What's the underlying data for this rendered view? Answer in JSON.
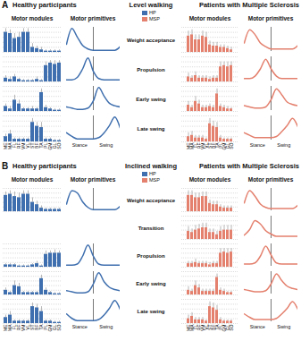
{
  "chart_data": {
    "type": "synergy_grid",
    "groups": [
      {
        "name": "HP",
        "title": "Healthy participants",
        "color": "#3f6fae"
      },
      {
        "name": "MSP",
        "title": "Patients with Multiple Sclerosis",
        "color": "#e4806e"
      }
    ],
    "column_titles": [
      "Motor modules",
      "Motor primitives"
    ],
    "muscles": [
      "ME",
      "MA",
      "FL",
      "RF",
      "VM",
      "VL",
      "ST",
      "BF",
      "TA",
      "PL",
      "GM",
      "GL",
      "SO"
    ],
    "module_ylim": [
      0,
      1
    ],
    "module_yticks": [
      0,
      0.2,
      0.4,
      0.6,
      0.8,
      1
    ],
    "grid": true,
    "tick_labels": "x",
    "primitive_x": [
      0,
      10,
      20,
      30,
      40,
      50,
      60,
      70,
      80,
      90,
      100
    ],
    "primitive_xlim": [
      0,
      100
    ],
    "primitive_ylim": [
      0,
      1
    ],
    "phase_boundary": 50,
    "phases": [
      "Stance",
      "Swing"
    ],
    "panels": [
      {
        "label": "A",
        "title": "Level walking",
        "synergies": [
          {
            "name": "Weight acceptance",
            "HP": {
              "module": [
                0.8,
                0.75,
                0.55,
                0.6,
                0.8,
                0.8,
                0.2,
                0.15,
                0.1,
                0.05,
                0.05,
                0.05,
                0.05
              ],
              "errors": [
                0.15,
                0.15,
                0.2,
                0.2,
                0.15,
                0.15,
                0.15,
                0.1,
                0.1,
                0.05,
                0.05,
                0.05,
                0.05
              ],
              "primitive": [
                0.3,
                0.95,
                0.6,
                0.25,
                0.1,
                0.05,
                0.05,
                0.05,
                0.05,
                0.05,
                0.2
              ]
            },
            "MSP": {
              "module": [
                0.65,
                0.7,
                0.5,
                0.5,
                0.65,
                0.6,
                0.3,
                0.25,
                0.25,
                0.2,
                0.2,
                0.15,
                0.1
              ],
              "errors": [
                0.2,
                0.2,
                0.2,
                0.2,
                0.2,
                0.2,
                0.15,
                0.15,
                0.15,
                0.1,
                0.1,
                0.1,
                0.1
              ],
              "primitive": [
                0.35,
                0.9,
                0.7,
                0.35,
                0.2,
                0.1,
                0.1,
                0.1,
                0.1,
                0.1,
                0.25
              ]
            }
          },
          {
            "name": "Propulsion",
            "HP": {
              "module": [
                0.15,
                0.1,
                0.2,
                0.1,
                0.05,
                0.05,
                0.05,
                0.1,
                0.05,
                0.65,
                0.75,
                0.7,
                0.75
              ],
              "errors": [
                0.1,
                0.1,
                0.1,
                0.05,
                0.05,
                0.05,
                0.05,
                0.1,
                0.05,
                0.15,
                0.1,
                0.15,
                0.1
              ],
              "primitive": [
                0.05,
                0.05,
                0.15,
                0.5,
                0.95,
                0.4,
                0.1,
                0.05,
                0.05,
                0.05,
                0.05
              ]
            },
            "MSP": {
              "module": [
                0.2,
                0.15,
                0.25,
                0.15,
                0.15,
                0.15,
                0.1,
                0.15,
                0.15,
                0.6,
                0.65,
                0.6,
                0.65
              ],
              "errors": [
                0.15,
                0.1,
                0.15,
                0.1,
                0.1,
                0.1,
                0.1,
                0.1,
                0.1,
                0.2,
                0.15,
                0.2,
                0.15
              ],
              "primitive": [
                0.1,
                0.1,
                0.2,
                0.5,
                0.9,
                0.5,
                0.2,
                0.1,
                0.1,
                0.1,
                0.1
              ]
            }
          },
          {
            "name": "Early swing",
            "HP": {
              "module": [
                0.2,
                0.1,
                0.45,
                0.3,
                0.1,
                0.1,
                0.1,
                0.1,
                0.75,
                0.15,
                0.1,
                0.05,
                0.05
              ],
              "errors": [
                0.1,
                0.1,
                0.2,
                0.15,
                0.05,
                0.05,
                0.1,
                0.05,
                0.15,
                0.1,
                0.05,
                0.05,
                0.05
              ],
              "primitive": [
                0.15,
                0.1,
                0.05,
                0.05,
                0.1,
                0.4,
                0.95,
                0.6,
                0.3,
                0.2,
                0.15
              ]
            },
            "MSP": {
              "module": [
                0.25,
                0.15,
                0.4,
                0.3,
                0.15,
                0.15,
                0.2,
                0.15,
                0.7,
                0.2,
                0.15,
                0.1,
                0.1
              ],
              "errors": [
                0.15,
                0.1,
                0.2,
                0.15,
                0.1,
                0.1,
                0.1,
                0.1,
                0.2,
                0.1,
                0.1,
                0.1,
                0.05
              ],
              "primitive": [
                0.2,
                0.15,
                0.1,
                0.1,
                0.15,
                0.45,
                0.9,
                0.65,
                0.35,
                0.25,
                0.2
              ]
            }
          },
          {
            "name": "Late swing",
            "HP": {
              "module": [
                0.2,
                0.3,
                0.1,
                0.1,
                0.1,
                0.1,
                0.75,
                0.6,
                0.55,
                0.1,
                0.1,
                0.05,
                0.05
              ],
              "errors": [
                0.1,
                0.15,
                0.05,
                0.05,
                0.05,
                0.05,
                0.15,
                0.15,
                0.2,
                0.05,
                0.05,
                0.05,
                0.05
              ],
              "primitive": [
                0.3,
                0.15,
                0.05,
                0.05,
                0.05,
                0.05,
                0.1,
                0.3,
                0.6,
                0.95,
                0.5
              ]
            },
            "MSP": {
              "module": [
                0.2,
                0.25,
                0.15,
                0.15,
                0.15,
                0.1,
                0.7,
                0.6,
                0.55,
                0.15,
                0.1,
                0.1,
                0.1
              ],
              "errors": [
                0.15,
                0.15,
                0.1,
                0.1,
                0.1,
                0.05,
                0.2,
                0.2,
                0.2,
                0.1,
                0.05,
                0.05,
                0.05
              ],
              "primitive": [
                0.3,
                0.2,
                0.1,
                0.1,
                0.1,
                0.1,
                0.15,
                0.35,
                0.6,
                0.9,
                0.55
              ]
            }
          }
        ]
      },
      {
        "label": "B",
        "title": "Inclined walking",
        "synergies": [
          {
            "name": "Weight acceptance",
            "HP": {
              "module": [
                0.7,
                0.75,
                0.65,
                0.6,
                0.75,
                0.75,
                0.4,
                0.3,
                0.15,
                0.1,
                0.1,
                0.1,
                0.1
              ],
              "errors": [
                0.15,
                0.15,
                0.2,
                0.2,
                0.15,
                0.15,
                0.2,
                0.15,
                0.1,
                0.05,
                0.05,
                0.05,
                0.05
              ],
              "primitive": [
                0.3,
                0.9,
                0.8,
                0.4,
                0.15,
                0.05,
                0.05,
                0.05,
                0.05,
                0.05,
                0.2
              ]
            },
            "MSP": {
              "module": [
                0.7,
                0.7,
                0.6,
                0.6,
                0.65,
                0.65,
                0.35,
                0.3,
                0.3,
                0.2,
                0.15,
                0.15,
                0.15
              ],
              "errors": [
                0.2,
                0.2,
                0.2,
                0.2,
                0.2,
                0.2,
                0.15,
                0.15,
                0.15,
                0.1,
                0.1,
                0.1,
                0.1
              ],
              "primitive": [
                0.35,
                0.9,
                0.65,
                0.3,
                0.15,
                0.1,
                0.1,
                0.1,
                0.1,
                0.1,
                0.25
              ]
            }
          },
          {
            "name": "Transition",
            "HP": null,
            "MSP": {
              "module": [
                0.35,
                0.3,
                0.4,
                0.45,
                0.5,
                0.5,
                0.3,
                0.3,
                0.2,
                0.35,
                0.4,
                0.4,
                0.4
              ],
              "errors": [
                0.2,
                0.15,
                0.2,
                0.2,
                0.2,
                0.2,
                0.15,
                0.15,
                0.15,
                0.2,
                0.2,
                0.2,
                0.2
              ],
              "primitive": [
                0.15,
                0.4,
                0.8,
                0.65,
                0.35,
                0.2,
                0.1,
                0.1,
                0.1,
                0.1,
                0.1
              ]
            }
          },
          {
            "name": "Propulsion",
            "HP": {
              "module": [
                0.1,
                0.1,
                0.1,
                0.05,
                0.05,
                0.05,
                0.1,
                0.15,
                0.05,
                0.55,
                0.6,
                0.6,
                0.6
              ],
              "errors": [
                0.05,
                0.05,
                0.05,
                0.05,
                0.05,
                0.05,
                0.05,
                0.1,
                0.05,
                0.15,
                0.1,
                0.15,
                0.1
              ],
              "primitive": [
                0.05,
                0.05,
                0.1,
                0.45,
                0.95,
                0.45,
                0.1,
                0.05,
                0.05,
                0.05,
                0.05
              ]
            },
            "MSP": {
              "module": [
                0.15,
                0.15,
                0.2,
                0.15,
                0.15,
                0.15,
                0.1,
                0.15,
                0.15,
                0.6,
                0.65,
                0.6,
                0.65
              ],
              "errors": [
                0.1,
                0.1,
                0.15,
                0.1,
                0.1,
                0.1,
                0.1,
                0.1,
                0.1,
                0.2,
                0.15,
                0.2,
                0.15
              ],
              "primitive": [
                0.1,
                0.1,
                0.15,
                0.45,
                0.9,
                0.5,
                0.15,
                0.1,
                0.1,
                0.1,
                0.1
              ]
            }
          },
          {
            "name": "Early swing",
            "HP": {
              "module": [
                0.2,
                0.1,
                0.4,
                0.35,
                0.1,
                0.1,
                0.1,
                0.1,
                0.7,
                0.2,
                0.1,
                0.05,
                0.05
              ],
              "errors": [
                0.1,
                0.05,
                0.2,
                0.15,
                0.05,
                0.05,
                0.05,
                0.05,
                0.15,
                0.1,
                0.05,
                0.05,
                0.05
              ],
              "primitive": [
                0.15,
                0.1,
                0.05,
                0.05,
                0.1,
                0.45,
                0.95,
                0.55,
                0.3,
                0.2,
                0.15
              ]
            },
            "MSP": {
              "module": [
                0.2,
                0.15,
                0.4,
                0.3,
                0.15,
                0.15,
                0.15,
                0.15,
                0.75,
                0.2,
                0.15,
                0.1,
                0.1
              ],
              "errors": [
                0.15,
                0.1,
                0.2,
                0.15,
                0.1,
                0.1,
                0.1,
                0.1,
                0.15,
                0.1,
                0.1,
                0.05,
                0.05
              ],
              "primitive": [
                0.2,
                0.15,
                0.1,
                0.1,
                0.15,
                0.45,
                0.9,
                0.6,
                0.35,
                0.25,
                0.2
              ]
            }
          },
          {
            "name": "Late swing",
            "HP": {
              "module": [
                0.25,
                0.35,
                0.1,
                0.1,
                0.1,
                0.1,
                0.7,
                0.65,
                0.5,
                0.1,
                0.1,
                0.05,
                0.05
              ],
              "errors": [
                0.1,
                0.15,
                0.05,
                0.05,
                0.05,
                0.05,
                0.15,
                0.15,
                0.2,
                0.05,
                0.05,
                0.05,
                0.05
              ],
              "primitive": [
                0.35,
                0.15,
                0.05,
                0.05,
                0.05,
                0.05,
                0.1,
                0.3,
                0.6,
                0.95,
                0.55
              ]
            },
            "MSP": {
              "module": [
                0.2,
                0.3,
                0.15,
                0.15,
                0.15,
                0.1,
                0.7,
                0.65,
                0.55,
                0.15,
                0.1,
                0.1,
                0.1
              ],
              "errors": [
                0.15,
                0.15,
                0.1,
                0.1,
                0.1,
                0.05,
                0.2,
                0.2,
                0.2,
                0.1,
                0.05,
                0.05,
                0.05
              ],
              "primitive": [
                0.35,
                0.2,
                0.1,
                0.1,
                0.1,
                0.1,
                0.15,
                0.35,
                0.6,
                0.9,
                0.55
              ]
            }
          }
        ]
      }
    ]
  }
}
